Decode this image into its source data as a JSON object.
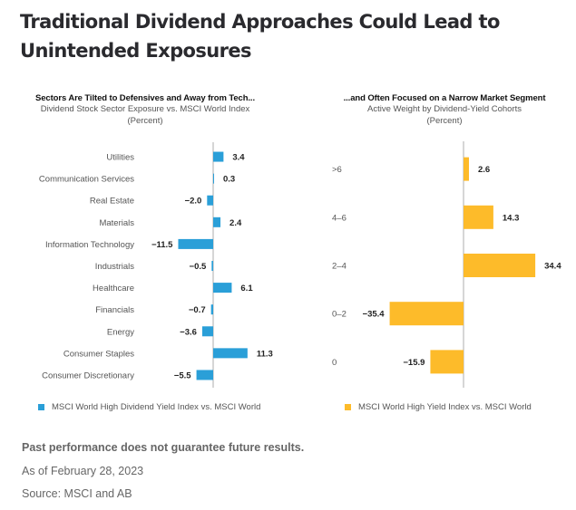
{
  "title": "Traditional Dividend Approaches Could Lead to Unintended Exposures",
  "colors": {
    "left_bar": "#2a9fd8",
    "right_bar": "#fdbb2a",
    "axis": "#c8c8c8"
  },
  "chart_data": [
    {
      "type": "bar",
      "orientation": "horizontal",
      "title": "Sectors Are Tilted to Defensives and Away from Tech...",
      "subtitle": "Dividend Stock Sector Exposure vs. MSCI World Index",
      "unit_label": "(Percent)",
      "categories": [
        "Utilities",
        "Communication Services",
        "Real Estate",
        "Materials",
        "Information Technology",
        "Industrials",
        "Healthcare",
        "Financials",
        "Energy",
        "Consumer Staples",
        "Consumer Discretionary"
      ],
      "values": [
        3.4,
        0.3,
        -2.0,
        2.4,
        -11.5,
        -0.5,
        6.1,
        -0.7,
        -3.6,
        11.3,
        -5.5
      ],
      "labels": [
        "3.4",
        "0.3",
        "−2.0",
        "2.4",
        "−11.5",
        "−0.5",
        "6.1",
        "−0.7",
        "−3.6",
        "11.3",
        "−5.5"
      ],
      "series": [
        {
          "name": "MSCI World High Dividend Yield Index vs. MSCI World",
          "color": "#2a9fd8"
        }
      ],
      "legend": "bottom",
      "grid": false,
      "xlim": [
        -11.5,
        11.3
      ]
    },
    {
      "type": "bar",
      "orientation": "horizontal",
      "title": "...and Often Focused on a Narrow Market Segment",
      "subtitle": "Active Weight by Dividend-Yield Cohorts",
      "unit_label": "(Percent)",
      "categories": [
        ">6",
        "4–6",
        "2–4",
        "0–2",
        "0"
      ],
      "values": [
        2.6,
        14.3,
        34.4,
        -35.4,
        -15.9
      ],
      "labels": [
        "2.6",
        "14.3",
        "34.4",
        "−35.4",
        "−15.9"
      ],
      "series": [
        {
          "name": "MSCI World High Yield Index vs. MSCI World",
          "color": "#fdbb2a"
        }
      ],
      "legend": "bottom",
      "grid": false,
      "xlim": [
        -35.4,
        34.4
      ]
    }
  ],
  "footer": {
    "disclaimer": "Past performance does not guarantee future results.",
    "as_of": "As of February 28, 2023",
    "source": "Source: MSCI and AB"
  }
}
